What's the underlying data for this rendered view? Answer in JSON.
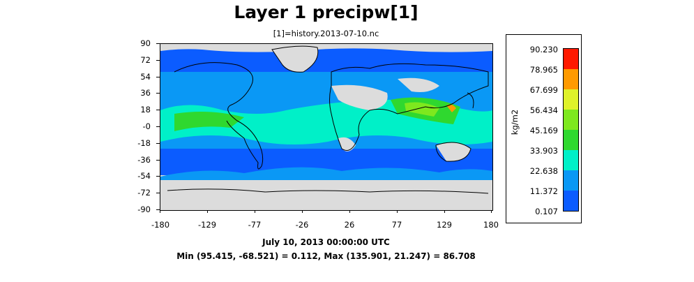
{
  "title": "Layer 1 precipw[1]",
  "subtitle": "[1]=history.2013-07-10.nc",
  "y_ticks": [
    "90",
    "72",
    "54",
    "36",
    "18",
    "-0",
    "-18",
    "-36",
    "-54",
    "-72",
    "-90"
  ],
  "x_ticks": [
    "-180",
    "-129",
    "-77",
    "-26",
    "26",
    "77",
    "129",
    "180"
  ],
  "footer": {
    "date": "July 10, 2013 00:00:00 UTC",
    "minmax": "Min (95.415, -68.521) = 0.112, Max (135.901, 21.247) = 86.708"
  },
  "legend": {
    "units": "kg/m2",
    "levels": [
      "90.230",
      "78.965",
      "67.699",
      "56.434",
      "45.169",
      "33.903",
      "22.638",
      "11.372",
      "0.107"
    ],
    "colors_bottom_to_top": [
      "#dcdcdc",
      "#0b5cff",
      "#0a98f5",
      "#00f0c8",
      "#2fd82f",
      "#7ee81e",
      "#dff22a",
      "#ff9a00",
      "#ff1a00"
    ]
  },
  "map_colors": {
    "ocean_low": "#0b5cff",
    "ocean_mid": "#0a98f5",
    "humid": "#00f0c8",
    "wet": "#2fd82f",
    "wetter": "#7ee81e",
    "land_dry": "#dcdcdc",
    "coast": "#000000"
  }
}
